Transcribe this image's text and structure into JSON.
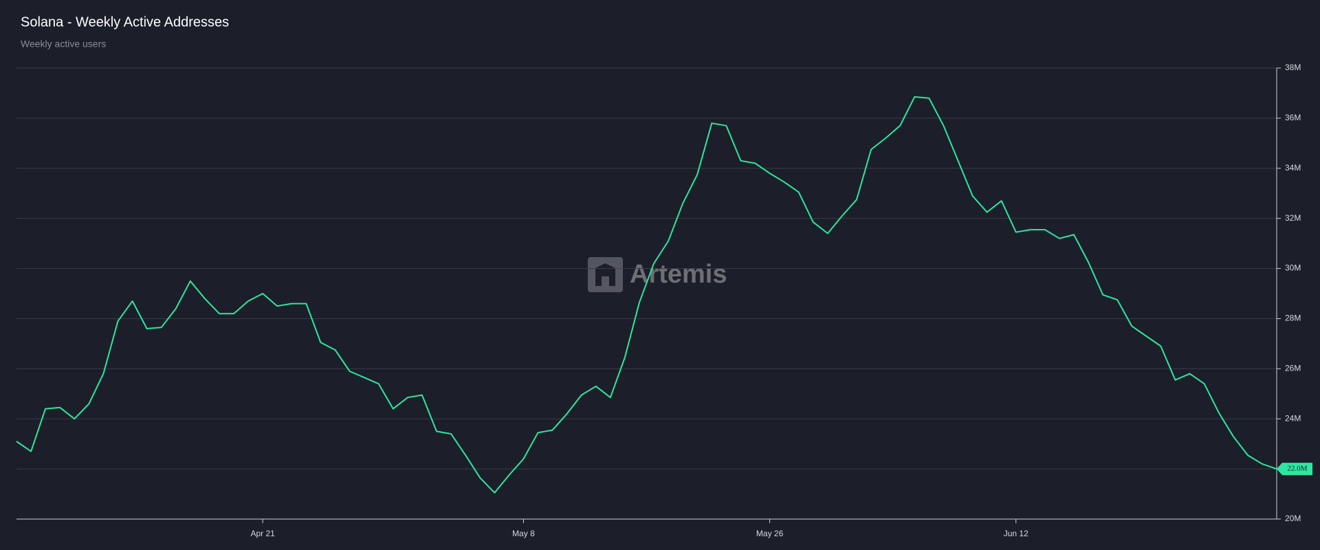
{
  "chart_data": {
    "type": "line",
    "title": "Solana - Weekly Active Addresses",
    "subtitle": "Weekly active users",
    "watermark": "Artemis",
    "categories": [
      null,
      null,
      null,
      null,
      null,
      null,
      null,
      null,
      null,
      null,
      null,
      null,
      null,
      null,
      null,
      null,
      null,
      "Apr 21",
      null,
      null,
      null,
      null,
      null,
      null,
      null,
      null,
      null,
      null,
      null,
      null,
      null,
      null,
      null,
      null,
      null,
      "May 8",
      null,
      null,
      null,
      null,
      null,
      null,
      null,
      null,
      null,
      null,
      null,
      null,
      null,
      null,
      null,
      null,
      "May 26",
      null,
      null,
      null,
      null,
      null,
      null,
      null,
      null,
      null,
      null,
      null,
      null,
      null,
      null,
      null,
      null,
      "Jun 12",
      null,
      null,
      null,
      null,
      null,
      null,
      null,
      null,
      null,
      null,
      null,
      null,
      null,
      null,
      null,
      null,
      null,
      null
    ],
    "series": [
      {
        "name": "Weekly active users",
        "color": "#2ee6a0",
        "values": [
          23.1,
          22.7,
          24.4,
          24.45,
          24.0,
          24.6,
          25.8,
          27.9,
          28.7,
          27.6,
          27.65,
          28.4,
          29.5,
          28.8,
          28.2,
          28.2,
          28.7,
          29.0,
          28.5,
          28.6,
          28.6,
          27.05,
          26.75,
          25.9,
          25.65,
          25.4,
          24.4,
          24.85,
          24.95,
          23.5,
          23.4,
          22.55,
          21.65,
          21.05,
          21.75,
          22.4,
          23.45,
          23.55,
          24.2,
          24.95,
          25.3,
          24.85,
          26.45,
          28.65,
          30.2,
          31.1,
          32.6,
          33.75,
          35.8,
          35.7,
          34.3,
          34.2,
          33.8,
          33.45,
          33.05,
          31.85,
          31.4,
          32.1,
          32.75,
          34.75,
          35.2,
          35.7,
          36.85,
          36.8,
          35.7,
          34.3,
          32.9,
          32.25,
          32.7,
          31.45,
          31.55,
          31.55,
          31.2,
          31.35,
          30.25,
          28.95,
          28.75,
          27.7,
          27.3,
          26.9,
          25.55,
          25.8,
          25.4,
          24.25,
          23.3,
          22.55,
          22.2,
          22.0
        ],
        "value_labels": [
          null,
          null,
          null,
          null,
          null,
          null,
          null,
          null,
          null,
          null,
          null,
          null,
          null,
          null,
          null,
          null,
          null,
          null,
          null,
          null,
          null,
          null,
          null,
          null,
          null,
          null,
          null,
          null,
          null,
          null,
          null,
          null,
          null,
          null,
          null,
          null,
          null,
          null,
          null,
          null,
          null,
          null,
          null,
          null,
          null,
          null,
          null,
          null,
          null,
          null,
          null,
          null,
          null,
          null,
          null,
          null,
          null,
          null,
          null,
          null,
          null,
          null,
          null,
          null,
          null,
          null,
          null,
          null,
          null,
          null,
          null,
          null,
          null,
          null,
          null,
          null,
          null,
          null,
          null,
          null,
          null,
          null,
          null,
          null,
          null,
          null,
          null,
          "22.0M"
        ]
      }
    ],
    "ylim": [
      20,
      38
    ],
    "yticks": [
      {
        "value": 20,
        "label": "20M"
      },
      {
        "value": 22,
        "label": "22M"
      },
      {
        "value": 24,
        "label": "24M"
      },
      {
        "value": 26,
        "label": "26M"
      },
      {
        "value": 28,
        "label": "28M"
      },
      {
        "value": 30,
        "label": "30M"
      },
      {
        "value": 32,
        "label": "32M"
      },
      {
        "value": 34,
        "label": "34M"
      },
      {
        "value": 36,
        "label": "36M"
      },
      {
        "value": 38,
        "label": "38M"
      }
    ],
    "grid": true
  }
}
